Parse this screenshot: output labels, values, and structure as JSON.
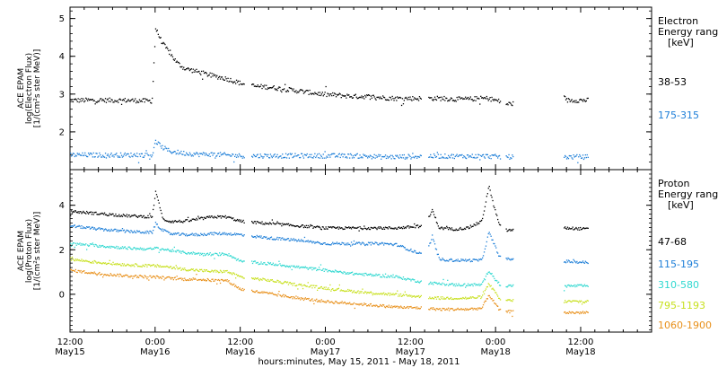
{
  "xaxis": {
    "label": "hours:minutes, May 15, 2011 - May 18, 2011",
    "ticks": [
      {
        "hours": 12,
        "time": "12:00",
        "date": "May15"
      },
      {
        "hours": 24,
        "time": "0:00",
        "date": "May16"
      },
      {
        "hours": 36,
        "time": "12:00",
        "date": "May16"
      },
      {
        "hours": 48,
        "time": "0:00",
        "date": "May17"
      },
      {
        "hours": 60,
        "time": "12:00",
        "date": "May17"
      },
      {
        "hours": 72,
        "time": "0:00",
        "date": "May18"
      },
      {
        "hours": 84,
        "time": "12:00",
        "date": "May18"
      }
    ]
  },
  "panels": [
    {
      "ylabel_lines": [
        "ACE EPAM",
        "log(Electron Flux)",
        "[1/(cm²s ster MeV)]"
      ],
      "ylim": [
        1.0,
        5.3
      ],
      "yticks": [
        2,
        3,
        4,
        5
      ],
      "legend_title": [
        "Electron",
        "Energy range",
        "[keV]"
      ],
      "channels": [
        {
          "label": "38-53",
          "color": "#000000"
        },
        {
          "label": "175-315",
          "color": "#1e7fd8"
        }
      ]
    },
    {
      "ylabel_lines": [
        "ACE EPAM",
        "log(Proton Flux)",
        "[1/(cm²s ster MeV)]"
      ],
      "ylim": [
        -1.7,
        5.6
      ],
      "yticks": [
        0,
        2,
        4
      ],
      "legend_title": [
        "Proton",
        "Energy range",
        "[keV]"
      ],
      "channels": [
        {
          "label": "47-68",
          "color": "#000000"
        },
        {
          "label": "115-195",
          "color": "#1e7fd8"
        },
        {
          "label": "310-580",
          "color": "#30d8d0"
        },
        {
          "label": "795-1193",
          "color": "#c8e020"
        },
        {
          "label": "1060-1900",
          "color": "#e8901a"
        }
      ]
    }
  ],
  "chart_data": [
    {
      "type": "scatter",
      "title": "",
      "xlabel": "hours:minutes, May 15, 2011 - May 18, 2011",
      "ylabel": "ACE EPAM log(Electron Flux) [1/(cm²s ster MeV)]",
      "x_unit": "hours since May 15 00:00",
      "xlim": [
        12,
        94
      ],
      "ylim": [
        1.0,
        5.3
      ],
      "series": [
        {
          "name": "38-53",
          "x": [
            12,
            16,
            20,
            23.5,
            24,
            25,
            26,
            27,
            28,
            30,
            32,
            34,
            36,
            38,
            40,
            42,
            44,
            46,
            48,
            50,
            52,
            54,
            56,
            58,
            62,
            64,
            66,
            68,
            70,
            71,
            72.5,
            73.5,
            82,
            85
          ],
          "y": [
            2.85,
            2.85,
            2.85,
            2.83,
            4.75,
            4.35,
            4.1,
            3.85,
            3.7,
            3.6,
            3.5,
            3.42,
            3.3,
            3.22,
            3.2,
            3.15,
            3.1,
            3.05,
            3.0,
            2.98,
            2.95,
            2.95,
            2.92,
            2.9,
            2.9,
            2.9,
            2.88,
            2.88,
            2.9,
            2.9,
            2.82,
            2.75,
            2.85,
            2.85
          ]
        },
        {
          "name": "175-315",
          "x": [
            12,
            16,
            20,
            23.5,
            24,
            25,
            26,
            28,
            30,
            32,
            34,
            36,
            40,
            44,
            48,
            52,
            56,
            58,
            62,
            66,
            70,
            71,
            72.5,
            73.5,
            82,
            85
          ],
          "y": [
            1.4,
            1.4,
            1.4,
            1.4,
            1.75,
            1.6,
            1.5,
            1.45,
            1.42,
            1.42,
            1.4,
            1.38,
            1.38,
            1.38,
            1.38,
            1.38,
            1.35,
            1.35,
            1.37,
            1.37,
            1.37,
            1.37,
            1.35,
            1.35,
            1.35,
            1.35
          ]
        }
      ]
    },
    {
      "type": "scatter",
      "title": "",
      "xlabel": "hours:minutes, May 15, 2011 - May 18, 2011",
      "ylabel": "ACE EPAM log(Proton Flux) [1/(cm²s ster MeV)]",
      "x_unit": "hours since May 15 00:00",
      "xlim": [
        12,
        94
      ],
      "ylim": [
        -1.7,
        5.6
      ],
      "series": [
        {
          "name": "47-68",
          "x": [
            12,
            16,
            20,
            23.5,
            24,
            24.5,
            25,
            26,
            28,
            30,
            32,
            34,
            36,
            40,
            44,
            48,
            52,
            56,
            58,
            62,
            63,
            64,
            66,
            68,
            70,
            71,
            71.5,
            72.5,
            73.5,
            82,
            85
          ],
          "y": [
            3.75,
            3.65,
            3.55,
            3.5,
            4.6,
            4.1,
            3.4,
            3.3,
            3.3,
            3.4,
            3.5,
            3.5,
            3.3,
            3.2,
            3.1,
            3.0,
            3.0,
            3.0,
            3.0,
            3.1,
            3.8,
            3.0,
            2.95,
            3.0,
            3.3,
            4.9,
            4.2,
            3.1,
            2.9,
            3.0,
            2.95
          ]
        },
        {
          "name": "115-195",
          "x": [
            12,
            16,
            20,
            23.5,
            24,
            25,
            26,
            28,
            30,
            32,
            34,
            36,
            40,
            44,
            48,
            52,
            56,
            58,
            62,
            63,
            64,
            66,
            68,
            70,
            71,
            72.5,
            73.5,
            82,
            85
          ],
          "y": [
            3.1,
            2.95,
            2.85,
            2.8,
            3.2,
            2.9,
            2.75,
            2.7,
            2.7,
            2.75,
            2.75,
            2.7,
            2.55,
            2.45,
            2.3,
            2.3,
            2.3,
            2.25,
            1.75,
            2.6,
            1.6,
            1.55,
            1.55,
            1.55,
            2.8,
            1.7,
            1.6,
            1.5,
            1.45
          ]
        },
        {
          "name": "310-580",
          "x": [
            12,
            16,
            20,
            23.5,
            24,
            26,
            28,
            30,
            32,
            34,
            36,
            40,
            44,
            48,
            52,
            56,
            58,
            62,
            64,
            66,
            68,
            70,
            71,
            72.5,
            73.5,
            82,
            85
          ],
          "y": [
            2.3,
            2.2,
            2.1,
            2.05,
            2.1,
            2.0,
            1.9,
            1.85,
            1.8,
            1.85,
            1.5,
            1.4,
            1.25,
            1.1,
            0.95,
            0.85,
            0.8,
            0.55,
            0.5,
            0.45,
            0.45,
            0.45,
            1.1,
            0.45,
            0.4,
            0.4,
            0.4
          ]
        },
        {
          "name": "795-1193",
          "x": [
            12,
            16,
            20,
            23.5,
            24,
            26,
            28,
            30,
            32,
            34,
            36,
            40,
            44,
            48,
            52,
            56,
            58,
            62,
            64,
            66,
            68,
            70,
            71,
            72.5,
            73.5,
            82,
            85
          ],
          "y": [
            1.6,
            1.45,
            1.35,
            1.3,
            1.3,
            1.25,
            1.15,
            1.1,
            1.05,
            1.05,
            0.8,
            0.65,
            0.45,
            0.3,
            0.15,
            0.05,
            0.0,
            -0.1,
            -0.15,
            -0.15,
            -0.15,
            -0.1,
            0.5,
            -0.2,
            -0.25,
            -0.3,
            -0.3
          ]
        },
        {
          "name": "1060-1900",
          "x": [
            12,
            16,
            20,
            23.5,
            24,
            26,
            28,
            30,
            32,
            34,
            36,
            40,
            44,
            48,
            52,
            56,
            58,
            62,
            64,
            66,
            68,
            70,
            71,
            72.5,
            73.5,
            82,
            85
          ],
          "y": [
            1.1,
            0.95,
            0.85,
            0.8,
            0.8,
            0.75,
            0.7,
            0.7,
            0.65,
            0.65,
            0.25,
            0.05,
            -0.15,
            -0.3,
            -0.4,
            -0.5,
            -0.55,
            -0.6,
            -0.65,
            -0.65,
            -0.65,
            -0.6,
            0.0,
            -0.7,
            -0.75,
            -0.8,
            -0.8
          ]
        }
      ]
    }
  ]
}
